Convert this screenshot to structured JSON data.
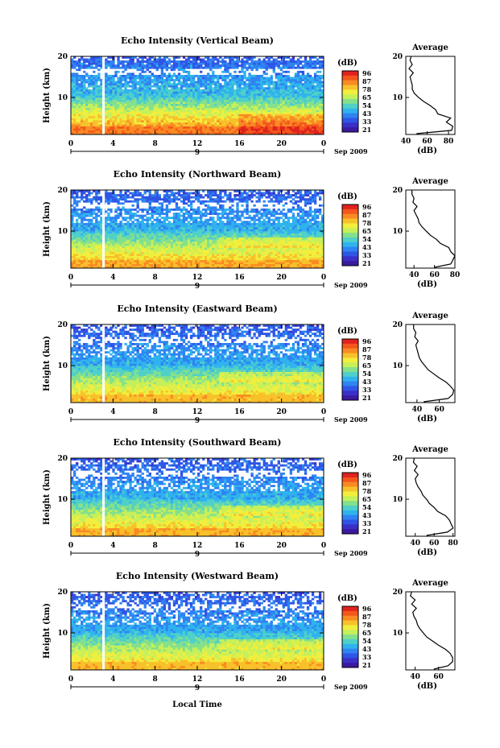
{
  "figure": {
    "xlabel": "Local Time",
    "date_label": "Sep 2009",
    "day_label": "9",
    "colorbar_unit": "(dB)",
    "colorbar_ticks": [
      "96",
      "87",
      "78",
      "65",
      "54",
      "43",
      "33",
      "21"
    ],
    "colorbar_colors": [
      "#e0221e",
      "#f4561c",
      "#f98a22",
      "#f8c12a",
      "#f2ee3c",
      "#c6f05a",
      "#84e08c",
      "#4fd0c8",
      "#2fb3ee",
      "#2f83f2",
      "#2f55e6",
      "#3a30c8",
      "#3b1aa0"
    ],
    "x_ticks": [
      "0",
      "4",
      "8",
      "12",
      "16",
      "20",
      "0"
    ],
    "y_ticks": [
      "20",
      "10"
    ],
    "avg_title": "Average",
    "avg_unit": "(dB)"
  },
  "chart_data": [
    {
      "type": "heatmap",
      "title": "Echo Intensity (Vertical Beam)",
      "ylabel": "Height (km)",
      "xlabel": "Local Time",
      "xlim": [
        0,
        24
      ],
      "ylim": [
        1,
        20
      ],
      "data_gap_hour": 3.1,
      "colorbar_range": [
        21,
        96
      ],
      "average_profile": {
        "title": "Average",
        "xlabel": "(dB)",
        "x_ticks": [
          "40",
          "60",
          "80"
        ],
        "xlim": [
          40,
          86
        ],
        "height_km": [
          1.2,
          2,
          3,
          4,
          5,
          6,
          7,
          8,
          9,
          10,
          11,
          12,
          13,
          14,
          15,
          16,
          17,
          18,
          19,
          20
        ],
        "db": [
          50,
          83,
          84,
          78,
          82,
          70,
          68,
          63,
          57,
          52,
          48,
          46,
          46,
          45,
          44,
          47,
          43,
          46,
          44,
          45
        ]
      }
    },
    {
      "type": "heatmap",
      "title": "Echo Intensity (Northward Beam)",
      "ylabel": "Height (km)",
      "xlabel": "Local Time",
      "xlim": [
        0,
        24
      ],
      "ylim": [
        1,
        20
      ],
      "data_gap_hour": 3.1,
      "colorbar_range": [
        21,
        96
      ],
      "average_profile": {
        "title": "Average",
        "xlabel": "(dB)",
        "x_ticks": [
          "40",
          "60",
          "80"
        ],
        "xlim": [
          32,
          80
        ],
        "height_km": [
          1.2,
          2,
          3,
          4,
          5,
          6,
          7,
          8,
          9,
          10,
          11,
          12,
          13,
          14,
          15,
          16,
          17,
          18,
          19,
          20
        ],
        "db": [
          60,
          76,
          78,
          80,
          76,
          74,
          66,
          62,
          56,
          52,
          48,
          45,
          44,
          42,
          40,
          43,
          39,
          40,
          38,
          38
        ]
      }
    },
    {
      "type": "heatmap",
      "title": "Echo Intensity (Eastward Beam)",
      "ylabel": "Height (km)",
      "xlabel": "Local Time",
      "xlim": [
        0,
        24
      ],
      "ylim": [
        1,
        20
      ],
      "data_gap_hour": 3.1,
      "colorbar_range": [
        21,
        96
      ],
      "average_profile": {
        "title": "Average",
        "xlabel": "(dB)",
        "x_ticks": [
          "40",
          "60"
        ],
        "xlim": [
          30,
          74
        ],
        "height_km": [
          1.2,
          2,
          3,
          4,
          5,
          6,
          7,
          8,
          9,
          10,
          11,
          12,
          13,
          14,
          15,
          16,
          17,
          18,
          19,
          20
        ],
        "db": [
          46,
          68,
          72,
          73,
          70,
          66,
          60,
          55,
          50,
          47,
          44,
          42,
          41,
          40,
          39,
          41,
          38,
          39,
          37,
          37
        ]
      }
    },
    {
      "type": "heatmap",
      "title": "Echo Intensity (Southward Beam)",
      "ylabel": "Height (km)",
      "xlabel": "Local Time",
      "xlim": [
        0,
        24
      ],
      "ylim": [
        1,
        20
      ],
      "data_gap_hour": 3.1,
      "colorbar_range": [
        21,
        96
      ],
      "average_profile": {
        "title": "Average",
        "xlabel": "(dB)",
        "x_ticks": [
          "40",
          "60",
          "80"
        ],
        "xlim": [
          30,
          82
        ],
        "height_km": [
          1.2,
          2,
          3,
          4,
          5,
          6,
          7,
          8,
          9,
          10,
          11,
          12,
          13,
          14,
          15,
          16,
          17,
          18,
          19,
          20
        ],
        "db": [
          52,
          74,
          80,
          78,
          76,
          72,
          64,
          60,
          55,
          52,
          48,
          46,
          43,
          41,
          40,
          43,
          39,
          42,
          38,
          39
        ]
      }
    },
    {
      "type": "heatmap",
      "title": "Echo Intensity (Westward Beam)",
      "ylabel": "Height (km)",
      "xlabel": "Local Time",
      "xlim": [
        0,
        24
      ],
      "ylim": [
        1,
        20
      ],
      "data_gap_hour": 3.1,
      "colorbar_range": [
        21,
        96
      ],
      "average_profile": {
        "title": "Average",
        "xlabel": "(dB)",
        "x_ticks": [
          "40",
          "60"
        ],
        "xlim": [
          32,
          74
        ],
        "height_km": [
          1.2,
          2,
          3,
          4,
          5,
          6,
          7,
          8,
          9,
          10,
          11,
          12,
          13,
          14,
          15,
          16,
          17,
          18,
          19,
          20
        ],
        "db": [
          56,
          68,
          72,
          72,
          70,
          66,
          60,
          55,
          50,
          47,
          44,
          42,
          41,
          39,
          38,
          41,
          37,
          40,
          36,
          37
        ]
      }
    }
  ]
}
